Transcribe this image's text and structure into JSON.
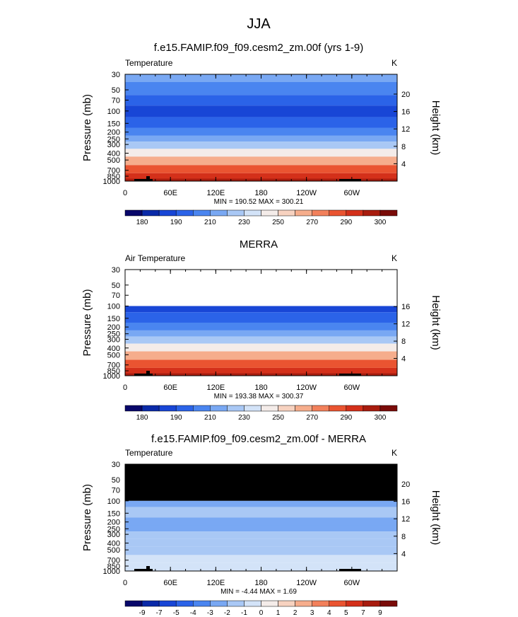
{
  "page": {
    "main_title": "JJA"
  },
  "colors": {
    "temp_levels": [
      "#08076a",
      "#0a2aa8",
      "#1846d6",
      "#2b63e8",
      "#4a85f0",
      "#79a8f3",
      "#a9c8f5",
      "#d3e3f8",
      "#f4ece9",
      "#f7d2c0",
      "#f6ad8c",
      "#f2805b",
      "#ea5431",
      "#d4301a",
      "#a81c0e",
      "#7a0b08"
    ],
    "diff_levels": [
      "#08076a",
      "#0a2aa8",
      "#1846d6",
      "#2b63e8",
      "#4a85f0",
      "#79a8f3",
      "#a9c8f5",
      "#d3e3f8",
      "#f4ece9",
      "#f7d2c0",
      "#f6ad8c",
      "#f2805b",
      "#ea5431",
      "#d4301a",
      "#a81c0e",
      "#7a0b08"
    ],
    "missing": "#000000"
  },
  "chart_data": [
    {
      "type": "heatmap",
      "title": "f.e15.FAMIP.f09_f09.cesm2_zm.00f (yrs 1-9)",
      "left_label": "Temperature",
      "right_label": "K",
      "ylabel": "Pressure (mb)",
      "y2label": "Height (km)",
      "x_ticks": [
        "0",
        "60E",
        "120E",
        "180",
        "120W",
        "60W"
      ],
      "y_ticks": [
        "30",
        "50",
        "70",
        "100",
        "150",
        "200",
        "250",
        "300",
        "400",
        "500",
        "700",
        "850",
        "1000"
      ],
      "y2_ticks": [
        "20",
        "16",
        "12",
        "8",
        "4"
      ],
      "ylim": [
        1000,
        30
      ],
      "min_max_text": "MIN = 190.52  MAX = 300.21",
      "colorbar_labels": [
        "180",
        "190",
        "210",
        "230",
        "250",
        "270",
        "290",
        "300"
      ],
      "level_profile": [
        {
          "p": 30,
          "level": 5
        },
        {
          "p": 50,
          "level": 4
        },
        {
          "p": 70,
          "level": 3
        },
        {
          "p": 100,
          "level": 2
        },
        {
          "p": 150,
          "level": 3
        },
        {
          "p": 200,
          "level": 4
        },
        {
          "p": 250,
          "level": 5
        },
        {
          "p": 300,
          "level": 6
        },
        {
          "p": 400,
          "level": 8
        },
        {
          "p": 500,
          "level": 10
        },
        {
          "p": 700,
          "level": 12
        },
        {
          "p": 850,
          "level": 13
        },
        {
          "p": 1000,
          "level": 14
        }
      ],
      "top_pressure_data": 30,
      "missing_top_above": null
    },
    {
      "type": "heatmap",
      "title": "MERRA",
      "left_label": "Air Temperature",
      "right_label": "K",
      "ylabel": "Pressure (mb)",
      "y2label": "Height (km)",
      "x_ticks": [
        "0",
        "60E",
        "120E",
        "180",
        "120W",
        "60W"
      ],
      "y_ticks": [
        "30",
        "50",
        "70",
        "100",
        "150",
        "200",
        "250",
        "300",
        "400",
        "500",
        "700",
        "850",
        "1000"
      ],
      "y2_ticks": [
        "16",
        "12",
        "8",
        "4"
      ],
      "ylim": [
        1000,
        30
      ],
      "min_max_text": "MIN = 193.38  MAX = 300.37",
      "colorbar_labels": [
        "180",
        "190",
        "210",
        "230",
        "250",
        "270",
        "290",
        "300"
      ],
      "level_profile": [
        {
          "p": 100,
          "level": 2
        },
        {
          "p": 150,
          "level": 3
        },
        {
          "p": 200,
          "level": 4
        },
        {
          "p": 250,
          "level": 5
        },
        {
          "p": 300,
          "level": 6
        },
        {
          "p": 400,
          "level": 8
        },
        {
          "p": 500,
          "level": 10
        },
        {
          "p": 700,
          "level": 12
        },
        {
          "p": 850,
          "level": 13
        },
        {
          "p": 1000,
          "level": 14
        }
      ],
      "top_pressure_data": 100,
      "missing_top_above": null
    },
    {
      "type": "heatmap",
      "title": "f.e15.FAMIP.f09_f09.cesm2_zm.00f - MERRA",
      "left_label": "Temperature",
      "right_label": "K",
      "ylabel": "Pressure (mb)",
      "y2label": "Height (km)",
      "x_ticks": [
        "0",
        "60E",
        "120E",
        "180",
        "120W",
        "60W"
      ],
      "y_ticks": [
        "30",
        "50",
        "70",
        "100",
        "150",
        "200",
        "250",
        "300",
        "400",
        "500",
        "700",
        "850",
        "1000"
      ],
      "y2_ticks": [
        "20",
        "16",
        "12",
        "8",
        "4"
      ],
      "ylim": [
        1000,
        30
      ],
      "min_max_text": "MIN =  -4.44  MAX =   1.69",
      "colorbar_labels": [
        "-9",
        "-7",
        "-5",
        "-4",
        "-3",
        "-2",
        "-1",
        "0",
        "1",
        "2",
        "3",
        "4",
        "5",
        "7",
        "9"
      ],
      "level_profile": [
        {
          "p": 100,
          "level": 5
        },
        {
          "p": 150,
          "level": 6
        },
        {
          "p": 200,
          "level": 5
        },
        {
          "p": 250,
          "level": 5
        },
        {
          "p": 300,
          "level": 6
        },
        {
          "p": 400,
          "level": 6
        },
        {
          "p": 500,
          "level": 6
        },
        {
          "p": 700,
          "level": 7
        },
        {
          "p": 850,
          "level": 7
        },
        {
          "p": 1000,
          "level": 7
        }
      ],
      "top_pressure_data": 100,
      "missing_top_above": 100
    }
  ]
}
